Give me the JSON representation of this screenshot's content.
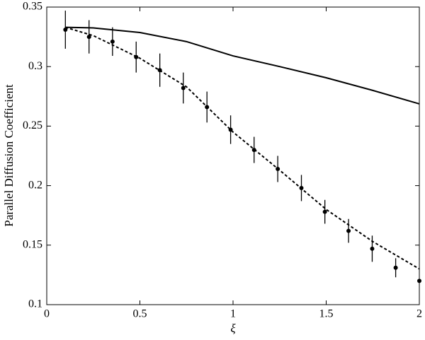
{
  "chart_data": {
    "type": "line",
    "xlabel": "ξ",
    "ylabel": "Parallel Diffusion Coefficient",
    "xlim": [
      0,
      2
    ],
    "ylim": [
      0.1,
      0.35
    ],
    "xticks": [
      0,
      0.5,
      1,
      1.5,
      2
    ],
    "yticks": [
      0.1,
      0.15,
      0.2,
      0.25,
      0.3,
      0.35
    ],
    "grid": false,
    "series": [
      {
        "style": "solid",
        "color": "#000000",
        "x": [
          0.1,
          0.25,
          0.5,
          0.75,
          1.0,
          1.25,
          1.5,
          1.75,
          2.0
        ],
        "values": [
          0.333,
          0.3325,
          0.3286,
          0.321,
          0.309,
          0.3,
          0.2906,
          0.28,
          0.2687
        ]
      },
      {
        "style": "dashed",
        "color": "#000000",
        "x": [
          0.1,
          0.25,
          0.5,
          0.75,
          1.0,
          1.25,
          1.5,
          1.75,
          2.0
        ],
        "values": [
          0.333,
          0.326,
          0.307,
          0.283,
          0.245,
          0.213,
          0.18,
          0.153,
          0.13
        ]
      },
      {
        "style": "points",
        "color": "#000000",
        "x": [
          0.1,
          0.227,
          0.353,
          0.48,
          0.607,
          0.733,
          0.86,
          0.987,
          1.113,
          1.24,
          1.367,
          1.493,
          1.62,
          1.747,
          1.873,
          2.0
        ],
        "values": [
          0.331,
          0.325,
          0.321,
          0.308,
          0.297,
          0.282,
          0.266,
          0.247,
          0.23,
          0.214,
          0.198,
          0.178,
          0.162,
          0.147,
          0.131,
          0.12
        ],
        "errors": [
          0.016,
          0.014,
          0.012,
          0.013,
          0.014,
          0.013,
          0.013,
          0.012,
          0.011,
          0.011,
          0.011,
          0.01,
          0.01,
          0.011,
          0.008,
          0
        ]
      }
    ]
  }
}
